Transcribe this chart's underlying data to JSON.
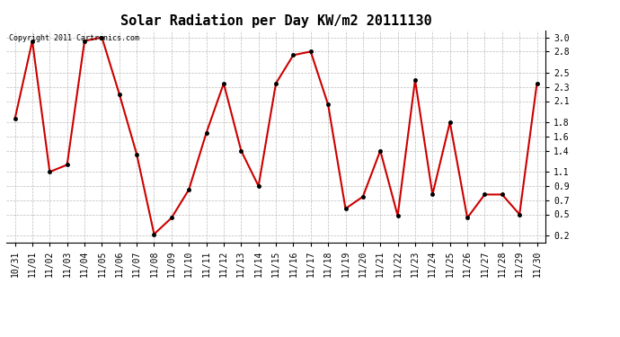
{
  "title": "Solar Radiation per Day KW/m2 20111130",
  "copyright_text": "Copyright 2011 Cartronics.com",
  "dates": [
    "10/31",
    "11/01",
    "11/02",
    "11/03",
    "11/04",
    "11/05",
    "11/06",
    "11/07",
    "11/08",
    "11/09",
    "11/10",
    "11/11",
    "11/12",
    "11/13",
    "11/14",
    "11/15",
    "11/16",
    "11/17",
    "11/18",
    "11/19",
    "11/20",
    "11/21",
    "11/22",
    "11/23",
    "11/24",
    "11/25",
    "11/26",
    "11/27",
    "11/28",
    "11/29",
    "11/30"
  ],
  "values": [
    1.85,
    2.95,
    1.1,
    1.2,
    2.95,
    3.0,
    2.2,
    1.35,
    0.22,
    0.45,
    0.85,
    1.65,
    2.35,
    1.4,
    0.9,
    2.35,
    2.75,
    2.8,
    2.05,
    0.58,
    0.75,
    1.4,
    0.48,
    2.4,
    0.78,
    1.8,
    0.45,
    0.78,
    0.78,
    0.5,
    2.35
  ],
  "line_color": "#cc0000",
  "marker": "o",
  "marker_size": 3,
  "bg_color": "#ffffff",
  "grid_color": "#bbbbbb",
  "yticks": [
    0.2,
    0.5,
    0.7,
    0.9,
    1.1,
    1.4,
    1.6,
    1.8,
    2.1,
    2.3,
    2.5,
    2.8,
    3.0
  ],
  "ylim": [
    0.1,
    3.1
  ],
  "title_fontsize": 11,
  "copyright_fontsize": 6,
  "tick_fontsize": 7
}
